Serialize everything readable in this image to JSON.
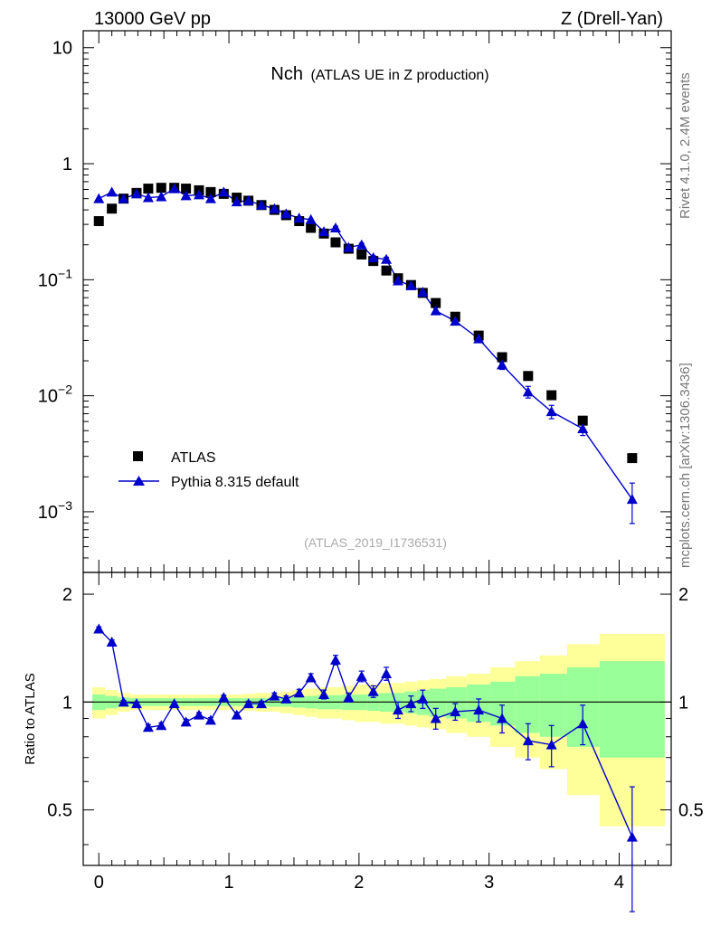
{
  "header": {
    "left": "13000 GeV pp",
    "right": "Z (Drell-Yan)"
  },
  "plot_title": {
    "main": "Nch",
    "sub": "(ATLAS UE in Z production)"
  },
  "watermark": "(ATLAS_2019_I1736531)",
  "side_labels": {
    "rivet": "Rivet 4.1.0,  2.4M events",
    "mcplots": "mcplots.cern.ch [arXiv:1306.3436]"
  },
  "legend": {
    "data": "ATLAS",
    "mc": "Pythia 8.315 default"
  },
  "colors": {
    "data": "#000000",
    "mc": "#0000cc",
    "band_inner": "#99ff99",
    "band_outer": "#ffff99"
  },
  "chart_data": [
    {
      "type": "scatter",
      "title": "Nch (ATLAS UE in Z production)",
      "yscale": "log",
      "ylim": [
        0.0003,
        14
      ],
      "xlim": [
        -0.12,
        4.4
      ],
      "yticks": [
        {
          "v": 10,
          "m": "10",
          "e": ""
        },
        {
          "v": 1,
          "m": "1",
          "e": ""
        },
        {
          "v": 0.1,
          "m": "10",
          "e": "−1"
        },
        {
          "v": 0.01,
          "m": "10",
          "e": "−2"
        },
        {
          "v": 0.001,
          "m": "10",
          "e": "−3"
        }
      ],
      "series": [
        {
          "name": "ATLAS",
          "x": [
            0,
            0.1,
            0.19,
            0.29,
            0.38,
            0.48,
            0.58,
            0.67,
            0.77,
            0.86,
            0.96,
            1.06,
            1.15,
            1.25,
            1.35,
            1.44,
            1.54,
            1.63,
            1.73,
            1.82,
            1.92,
            2.02,
            2.11,
            2.21,
            2.3,
            2.4,
            2.49,
            2.59,
            2.74,
            2.92,
            3.1,
            3.3,
            3.48,
            3.72,
            4.1
          ],
          "y": [
            0.32,
            0.41,
            0.5,
            0.56,
            0.61,
            0.62,
            0.62,
            0.61,
            0.59,
            0.57,
            0.55,
            0.51,
            0.48,
            0.44,
            0.4,
            0.36,
            0.32,
            0.28,
            0.25,
            0.21,
            0.185,
            0.165,
            0.145,
            0.12,
            0.103,
            0.09,
            0.077,
            0.063,
            0.048,
            0.033,
            0.0215,
            0.0148,
            0.0101,
            0.0061,
            0.0029
          ]
        },
        {
          "name": "Pythia 8.315 default",
          "x": [
            0,
            0.1,
            0.19,
            0.29,
            0.38,
            0.48,
            0.58,
            0.67,
            0.77,
            0.86,
            0.96,
            1.06,
            1.15,
            1.25,
            1.35,
            1.44,
            1.54,
            1.63,
            1.73,
            1.82,
            1.92,
            2.02,
            2.11,
            2.21,
            2.3,
            2.4,
            2.49,
            2.59,
            2.74,
            2.92,
            3.1,
            3.3,
            3.48,
            3.72,
            4.1
          ],
          "y": [
            0.5,
            0.57,
            0.5,
            0.55,
            0.51,
            0.52,
            0.61,
            0.53,
            0.54,
            0.5,
            0.57,
            0.47,
            0.48,
            0.44,
            0.41,
            0.37,
            0.34,
            0.33,
            0.26,
            0.28,
            0.19,
            0.2,
            0.155,
            0.15,
            0.098,
            0.089,
            0.078,
            0.054,
            0.044,
            0.031,
            0.0185,
            0.0108,
            0.0073,
            0.0052,
            0.00128
          ]
        }
      ]
    },
    {
      "type": "line",
      "ylabel": "Ratio to ATLAS",
      "xlim": [
        -0.12,
        4.4
      ],
      "ylim": [
        0.35,
        2.3
      ],
      "xticks": [
        0,
        1,
        2,
        3,
        4
      ],
      "yticks": [
        2,
        1,
        0.5
      ],
      "reference": 1,
      "x": [
        0,
        0.1,
        0.19,
        0.29,
        0.38,
        0.48,
        0.58,
        0.67,
        0.77,
        0.86,
        0.96,
        1.06,
        1.15,
        1.25,
        1.35,
        1.44,
        1.54,
        1.63,
        1.73,
        1.82,
        1.92,
        2.02,
        2.11,
        2.21,
        2.3,
        2.4,
        2.49,
        2.59,
        2.74,
        2.92,
        3.1,
        3.3,
        3.48,
        3.72,
        4.1
      ],
      "ratio": [
        1.6,
        1.47,
        1.0,
        0.99,
        0.85,
        0.86,
        0.99,
        0.88,
        0.92,
        0.89,
        1.03,
        0.92,
        0.99,
        0.99,
        1.04,
        1.02,
        1.06,
        1.17,
        1.05,
        1.31,
        1.03,
        1.18,
        1.07,
        1.2,
        0.95,
        0.99,
        1.02,
        0.9,
        0.94,
        0.95,
        0.9,
        0.78,
        0.76,
        0.87,
        0.42
      ],
      "ratio_err": [
        0.02,
        0.02,
        0.01,
        0.01,
        0.015,
        0.015,
        0.01,
        0.015,
        0.015,
        0.015,
        0.015,
        0.015,
        0.015,
        0.015,
        0.02,
        0.02,
        0.025,
        0.03,
        0.03,
        0.04,
        0.03,
        0.04,
        0.04,
        0.05,
        0.05,
        0.05,
        0.06,
        0.06,
        0.05,
        0.07,
        0.08,
        0.09,
        0.1,
        0.11,
        0.16
      ],
      "band_edges": [
        -0.05,
        0.05,
        0.145,
        0.24,
        0.335,
        0.43,
        0.53,
        0.625,
        0.72,
        0.815,
        0.91,
        1.01,
        1.105,
        1.2,
        1.3,
        1.395,
        1.49,
        1.585,
        1.68,
        1.775,
        1.87,
        1.97,
        2.065,
        2.16,
        2.255,
        2.35,
        2.445,
        2.54,
        2.67,
        2.83,
        3.01,
        3.2,
        3.39,
        3.6,
        3.85,
        4.35
      ],
      "band_inner": [
        0.05,
        0.04,
        0.03,
        0.025,
        0.025,
        0.025,
        0.025,
        0.025,
        0.025,
        0.025,
        0.025,
        0.025,
        0.025,
        0.025,
        0.03,
        0.03,
        0.035,
        0.04,
        0.045,
        0.045,
        0.05,
        0.05,
        0.055,
        0.06,
        0.06,
        0.07,
        0.08,
        0.09,
        0.1,
        0.12,
        0.14,
        0.18,
        0.2,
        0.25,
        0.3
      ],
      "band_outer": [
        0.1,
        0.08,
        0.06,
        0.05,
        0.05,
        0.05,
        0.05,
        0.05,
        0.05,
        0.05,
        0.05,
        0.05,
        0.055,
        0.06,
        0.06,
        0.07,
        0.08,
        0.09,
        0.1,
        0.1,
        0.11,
        0.12,
        0.12,
        0.13,
        0.13,
        0.14,
        0.15,
        0.16,
        0.18,
        0.2,
        0.25,
        0.3,
        0.35,
        0.45,
        0.55
      ]
    }
  ]
}
